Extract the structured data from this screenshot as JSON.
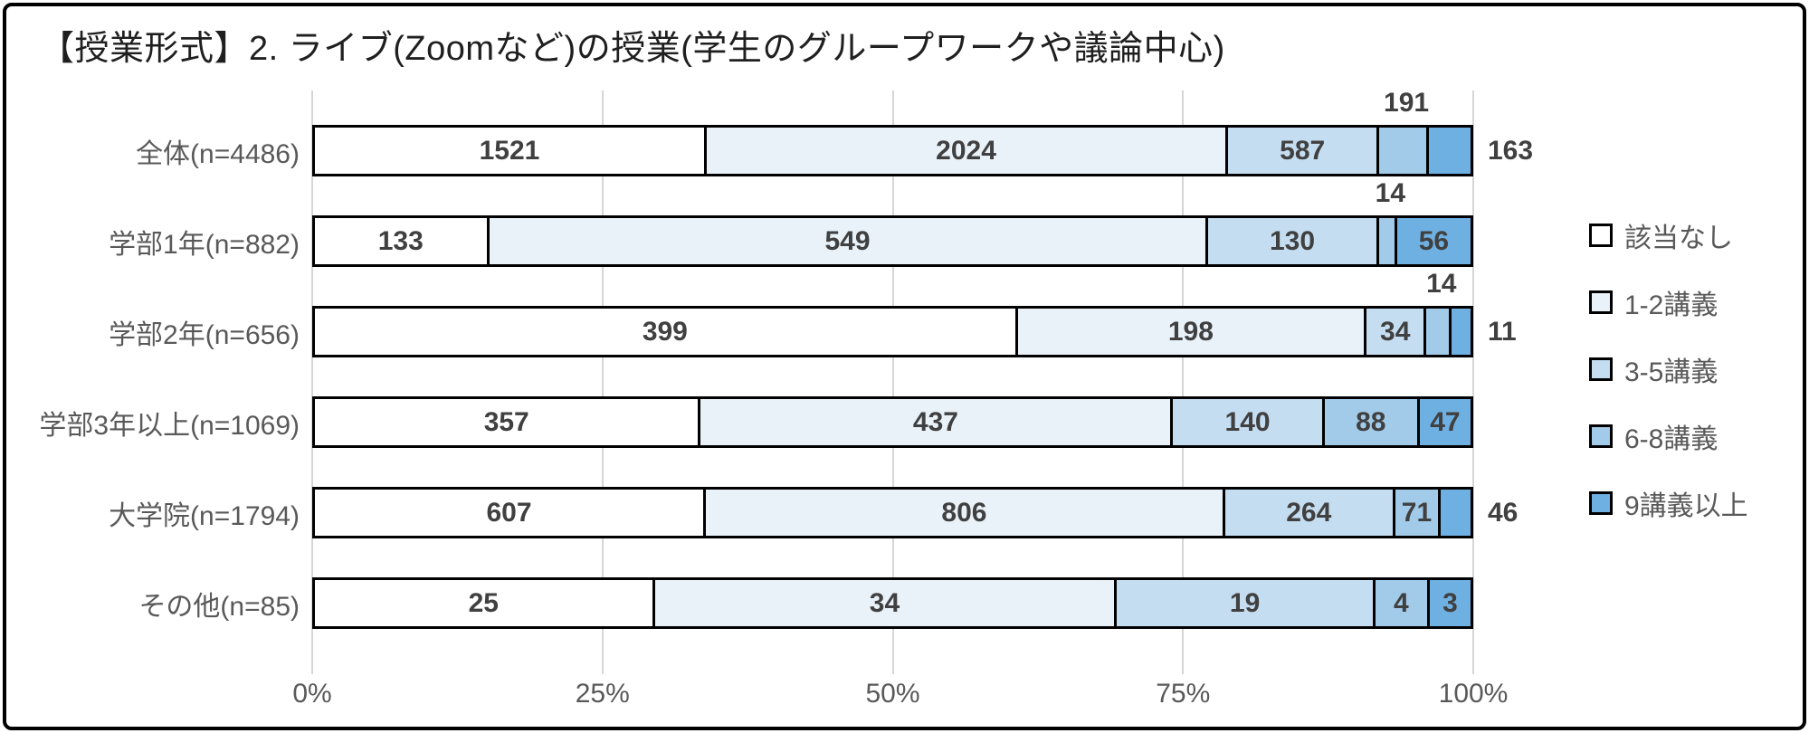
{
  "title": "【授業形式】2. ライブ(Zoomなど)の授業(学生のグループワークや議論中心)",
  "chart_data": {
    "type": "bar",
    "orientation": "horizontal",
    "stacked": true,
    "percent_stacked": true,
    "title": "【授業形式】2. ライブ(Zoomなど)の授業(学生のグループワークや議論中心)",
    "categories": [
      "全体(n=4486)",
      "学部1年(n=882)",
      "学部2年(n=656)",
      "学部3年以上(n=1069)",
      "大学院(n=1794)",
      "その他(n=85)"
    ],
    "series": [
      {
        "name": "該当なし",
        "color": "#ffffff",
        "values": [
          1521,
          133,
          399,
          357,
          607,
          25
        ]
      },
      {
        "name": "1-2講義",
        "color": "#e9f2f9",
        "values": [
          2024,
          549,
          198,
          437,
          806,
          34
        ]
      },
      {
        "name": "3-5講義",
        "color": "#c5ddf1",
        "values": [
          587,
          130,
          34,
          140,
          264,
          19
        ]
      },
      {
        "name": "6-8講義",
        "color": "#a2cbea",
        "values": [
          191,
          14,
          14,
          88,
          71,
          4
        ]
      },
      {
        "name": "9講義以上",
        "color": "#6fb0e2",
        "values": [
          163,
          56,
          11,
          47,
          46,
          3
        ]
      }
    ],
    "value_labels": [
      [
        "inside",
        "inside",
        "inside",
        "above",
        "right"
      ],
      [
        "inside",
        "inside",
        "inside",
        "above",
        "inside"
      ],
      [
        "inside",
        "inside",
        "inside",
        "above",
        "right"
      ],
      [
        "inside",
        "inside",
        "inside",
        "inside",
        "inside"
      ],
      [
        "inside",
        "inside",
        "inside",
        "inside",
        "right"
      ],
      [
        "inside",
        "inside",
        "inside",
        "inside",
        "inside"
      ]
    ],
    "x_ticks": [
      "0%",
      "25%",
      "50%",
      "75%",
      "100%"
    ],
    "xlim": [
      0,
      100
    ],
    "legend_position": "right",
    "gridlines": "vertical",
    "gridline_color": "#d6d6d6",
    "segment_border_color": "#000000",
    "value_label_color": "#404040",
    "axis_label_color": "#595959"
  }
}
